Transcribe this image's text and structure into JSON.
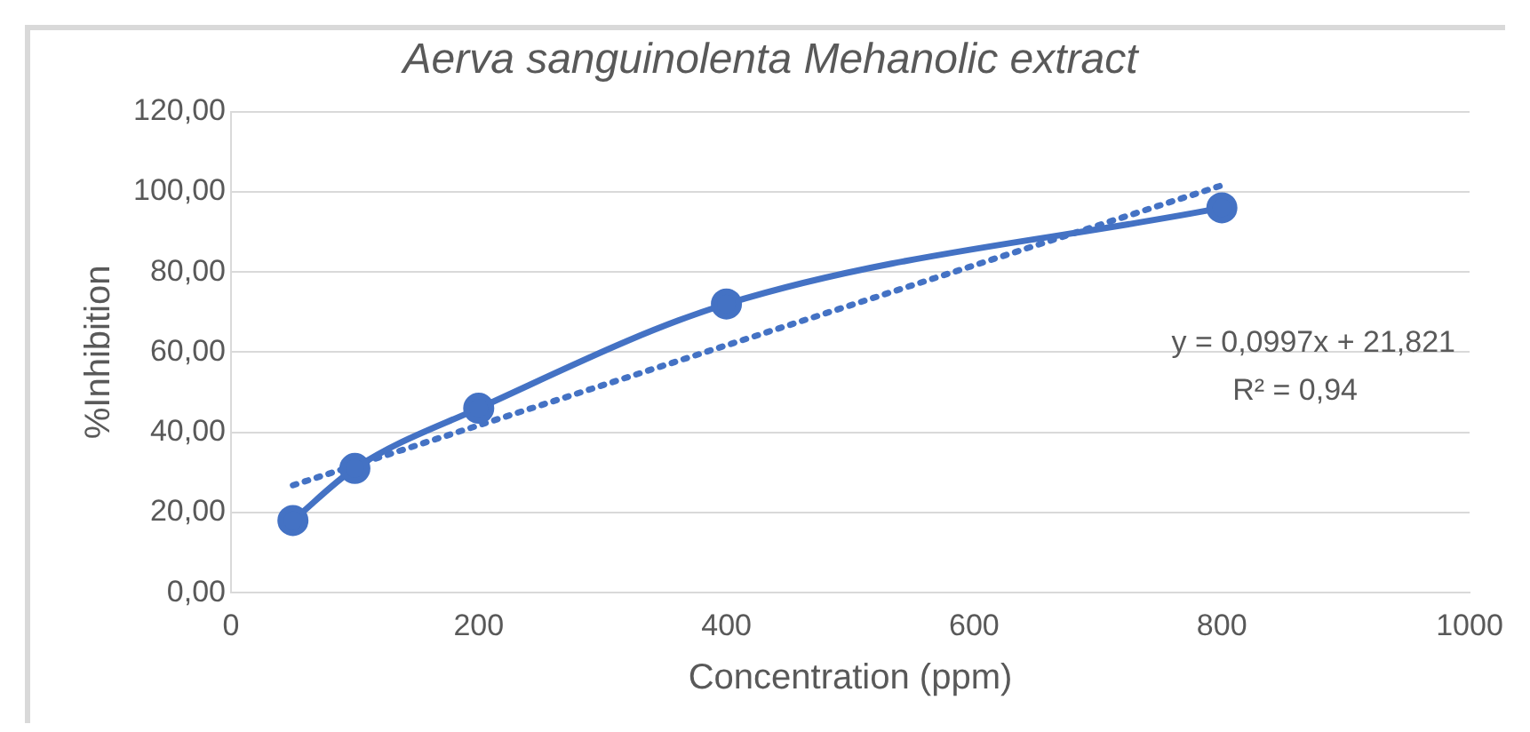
{
  "chart_data": {
    "type": "line",
    "title": "Aerva sanguinolenta Mehanolic extract",
    "xlabel": "Concentration (ppm)",
    "ylabel": "%Inhibition",
    "series": [
      {
        "type": "line",
        "color": "#4472c4",
        "x": [
          50,
          100,
          200,
          400,
          800
        ],
        "values": [
          18,
          31,
          46,
          72,
          96
        ],
        "marker": "circle",
        "line_style": "solid"
      },
      {
        "type": "line",
        "color": "#4472c4",
        "x": [
          50,
          800
        ],
        "values": [
          26.8,
          101.6
        ],
        "marker": "none",
        "line_style": "dotted"
      }
    ],
    "annotations": [
      "y = 0,0997x + 21,821",
      "R² = 0,94"
    ],
    "xlim": [
      0,
      1000
    ],
    "xticks": [
      0,
      200,
      400,
      600,
      800,
      1000
    ],
    "ylim": [
      0,
      120
    ],
    "yticks": [
      {
        "value": 0,
        "label": "0,00"
      },
      {
        "value": 20,
        "label": "20,00"
      },
      {
        "value": 40,
        "label": "40,00"
      },
      {
        "value": 60,
        "label": "60,00"
      },
      {
        "value": 80,
        "label": "80,00"
      },
      {
        "value": 100,
        "label": "100,00"
      },
      {
        "value": 120,
        "label": "120,00"
      }
    ],
    "grid": "y",
    "legend": false
  }
}
